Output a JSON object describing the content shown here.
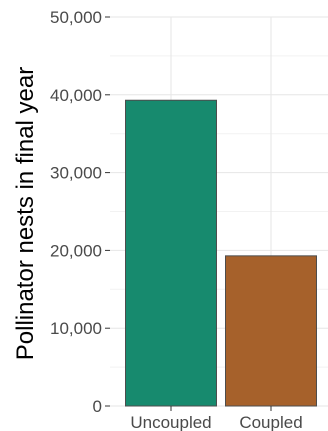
{
  "chart_data": {
    "type": "bar",
    "categories": [
      "Uncoupled",
      "Coupled"
    ],
    "values": [
      39300,
      19300
    ],
    "ylabel": "Pollinator nests in final year",
    "ylim": [
      0,
      50000
    ],
    "yticks": [
      0,
      10000,
      20000,
      30000,
      40000,
      50000
    ],
    "ytick_labels": [
      "0",
      "10,000",
      "20,000",
      "30,000",
      "40,000",
      "50,000"
    ],
    "grid": true,
    "colors": [
      "#178A6E",
      "#A6612B"
    ]
  }
}
